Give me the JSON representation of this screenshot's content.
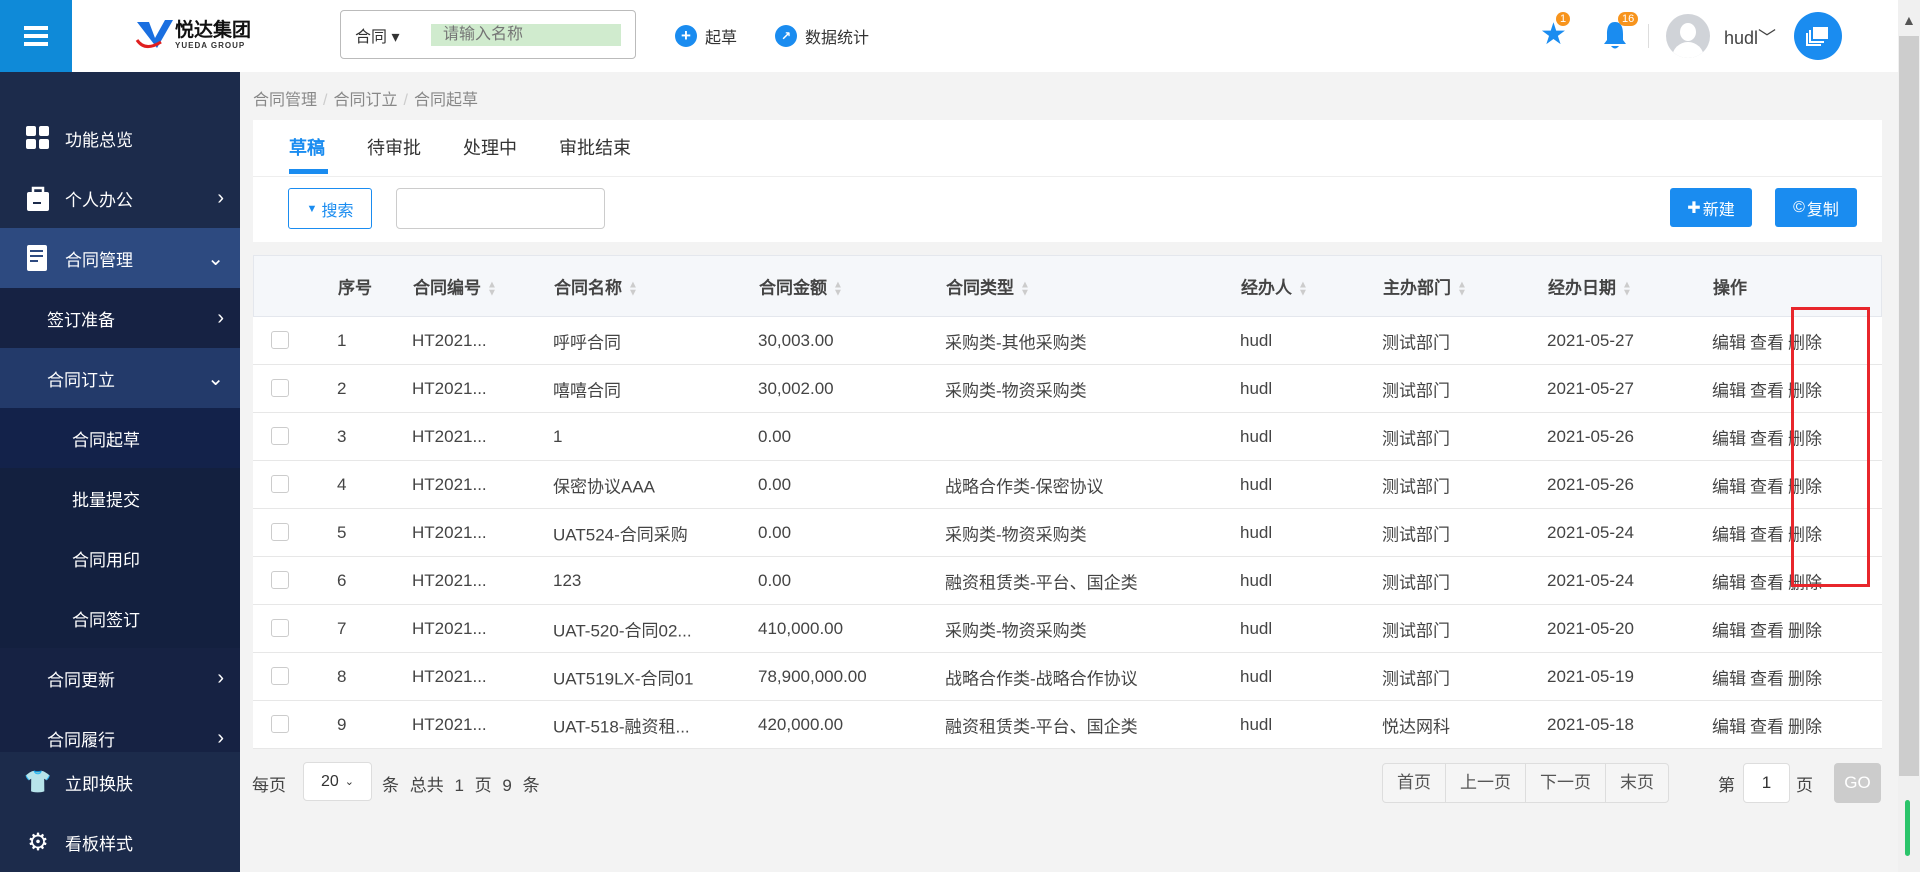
{
  "header": {
    "logo_text": "悦达集团",
    "logo_sub": "YUEDA GROUP",
    "search_type": "合同",
    "search_placeholder": "请输入名称",
    "draft_link": "起草",
    "stats_link": "数据统计",
    "star_badge": "1",
    "bell_badge": "16",
    "username": "hudl"
  },
  "sidebar": {
    "items": [
      {
        "label": "功能总览"
      },
      {
        "label": "个人办公"
      },
      {
        "label": "合同管理"
      },
      {
        "label": "签订准备"
      },
      {
        "label": "合同订立"
      },
      {
        "label": "合同起草"
      },
      {
        "label": "批量提交"
      },
      {
        "label": "合同用印"
      },
      {
        "label": "合同签订"
      },
      {
        "label": "合同更新"
      },
      {
        "label": "合同履行"
      }
    ],
    "bottom": [
      {
        "label": "立即换肤"
      },
      {
        "label": "看板样式"
      }
    ]
  },
  "breadcrumb": [
    "合同管理",
    "合同订立",
    "合同起草"
  ],
  "tabs": [
    {
      "label": "草稿",
      "active": true
    },
    {
      "label": "待审批"
    },
    {
      "label": "处理中"
    },
    {
      "label": "审批结束"
    }
  ],
  "toolbar": {
    "search_label": "搜索",
    "new_label": "新建",
    "copy_label": "复制"
  },
  "table": {
    "columns": [
      "序号",
      "合同编号",
      "合同名称",
      "合同金额",
      "合同类型",
      "经办人",
      "主办部门",
      "经办日期",
      "操作"
    ],
    "actions": [
      "编辑",
      "查看",
      "删除"
    ],
    "rows": [
      [
        "1",
        "HT2021...",
        "呼呼合同",
        "30,003.00",
        "采购类-其他采购类",
        "hudl",
        "测试部门",
        "2021-05-27"
      ],
      [
        "2",
        "HT2021...",
        "嘻嘻合同",
        "30,002.00",
        "采购类-物资采购类",
        "hudl",
        "测试部门",
        "2021-05-27"
      ],
      [
        "3",
        "HT2021...",
        "1",
        "0.00",
        "",
        "hudl",
        "测试部门",
        "2021-05-26"
      ],
      [
        "4",
        "HT2021...",
        "保密协议AAA",
        "0.00",
        "战略合作类-保密协议",
        "hudl",
        "测试部门",
        "2021-05-26"
      ],
      [
        "5",
        "HT2021...",
        "UAT524-合同采购",
        "0.00",
        "采购类-物资采购类",
        "hudl",
        "测试部门",
        "2021-05-24"
      ],
      [
        "6",
        "HT2021...",
        "123",
        "0.00",
        "融资租赁类-平台、国企类",
        "hudl",
        "测试部门",
        "2021-05-24"
      ],
      [
        "7",
        "HT2021...",
        "UAT-520-合同02...",
        "410,000.00",
        "采购类-物资采购类",
        "hudl",
        "测试部门",
        "2021-05-20"
      ],
      [
        "8",
        "HT2021...",
        "UAT519LX-合同01",
        "78,900,000.00",
        "战略合作类-战略合作协议",
        "hudl",
        "测试部门",
        "2021-05-19"
      ],
      [
        "9",
        "HT2021...",
        "UAT-518-融资租...",
        "420,000.00",
        "融资租赁类-平台、国企类",
        "hudl",
        "悦达网科",
        "2021-05-18"
      ]
    ]
  },
  "pagination": {
    "per_page_label": "每页",
    "page_size": "20",
    "unit": "条",
    "total_label": "总共",
    "total_pages": "1",
    "page_unit": "页",
    "total_count": "9",
    "count_unit": "条",
    "first": "首页",
    "prev": "上一页",
    "next": "下一页",
    "last": "末页",
    "page_prefix": "第",
    "current_page": "1",
    "page_suffix": "页",
    "go": "GO"
  },
  "colors": {
    "accent": "#1a8cf0",
    "sidebar": "#1c2b4b",
    "highlight_box": "#e8262b"
  }
}
